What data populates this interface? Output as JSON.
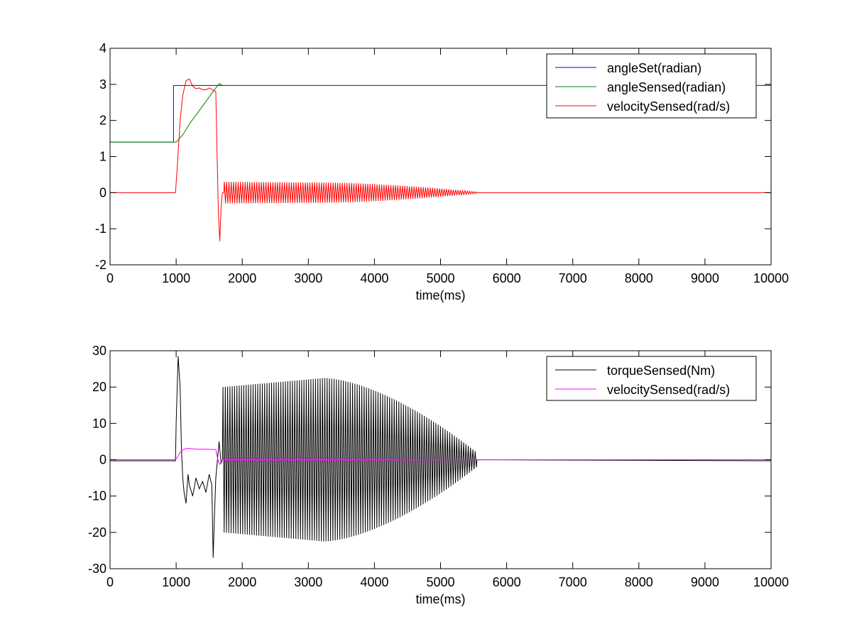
{
  "chart_data": [
    {
      "type": "line",
      "xlabel": "time(ms)",
      "ylabel": "",
      "xlim": [
        0,
        10000
      ],
      "ylim": [
        -2,
        4
      ],
      "xticks": [
        0,
        1000,
        2000,
        3000,
        4000,
        5000,
        6000,
        7000,
        8000,
        9000,
        10000
      ],
      "yticks": [
        -2,
        -1,
        0,
        1,
        2,
        3,
        4
      ],
      "grid": false,
      "legend_position": "top-right",
      "series": [
        {
          "name": "angleSet(radian)",
          "color": "#0000ff",
          "x": [
            0,
            960,
            960,
            10000
          ],
          "y": [
            1.4,
            1.4,
            2.97,
            2.97
          ]
        },
        {
          "name": "angleSensed(radian)",
          "color": "#008000",
          "x": [
            0,
            1000,
            1100,
            1200,
            1300,
            1400,
            1500,
            1600,
            1650,
            1700,
            10000
          ],
          "y": [
            1.4,
            1.4,
            1.6,
            1.9,
            2.15,
            2.4,
            2.65,
            2.9,
            3.02,
            2.97,
            2.97
          ]
        },
        {
          "name": "velocitySensed(rad/s)",
          "color": "#ff0000",
          "x": [
            0,
            990,
            1020,
            1060,
            1100,
            1150,
            1200,
            1250,
            1300,
            1350,
            1400,
            1450,
            1500,
            1550,
            1600,
            1620,
            1640,
            1660,
            1680,
            1700,
            10000
          ],
          "y": [
            0,
            0,
            0.8,
            2.0,
            2.7,
            3.1,
            3.15,
            2.95,
            2.88,
            2.9,
            2.85,
            2.85,
            2.9,
            2.85,
            2.8,
            1.0,
            -0.6,
            -1.35,
            -0.4,
            0,
            0
          ],
          "oscillation": {
            "start": 1720,
            "end": 5550,
            "period": 35,
            "amplitude_start": 0.3,
            "amplitude_mid": 0.28,
            "amplitude_end": 0.02
          }
        }
      ]
    },
    {
      "type": "line",
      "xlabel": "time(ms)",
      "ylabel": "",
      "xlim": [
        0,
        10000
      ],
      "ylim": [
        -30,
        30
      ],
      "xticks": [
        0,
        1000,
        2000,
        3000,
        4000,
        5000,
        6000,
        7000,
        8000,
        9000,
        10000
      ],
      "yticks": [
        -30,
        -20,
        -10,
        0,
        10,
        20,
        30
      ],
      "grid": false,
      "legend_position": "top-right",
      "series": [
        {
          "name": "torqueSensed(Nm)",
          "color": "#000000",
          "x": [
            0,
            990,
            1000,
            1030,
            1060,
            1080,
            1100,
            1120,
            1150,
            1180,
            1200,
            1250,
            1300,
            1350,
            1400,
            1450,
            1500,
            1540,
            1560,
            1580,
            1600,
            1620,
            1650,
            1680,
            10000
          ],
          "y": [
            -0.3,
            -0.3,
            10,
            28.5,
            20,
            3,
            -5,
            -9,
            -12,
            -4,
            -7,
            -10,
            -5,
            -8,
            -6,
            -9,
            -4,
            -7,
            -27,
            -15,
            -5,
            -1,
            5,
            -1,
            -0.3
          ],
          "oscillation": {
            "start": 1700,
            "end": 5550,
            "period": 35,
            "amplitude_start": 20,
            "amplitude_mid": 22.5,
            "amplitude_end": 2
          }
        },
        {
          "name": "velocitySensed(rad/s)",
          "color": "#ff00ff",
          "x": [
            0,
            990,
            1020,
            1060,
            1100,
            1150,
            1200,
            1300,
            1400,
            1500,
            1600,
            1620,
            1640,
            1660,
            1700,
            10000
          ],
          "y": [
            0,
            0,
            0.8,
            2.0,
            2.7,
            3.1,
            3.1,
            2.9,
            2.9,
            2.85,
            2.8,
            1.0,
            -0.6,
            -1.3,
            0,
            0
          ],
          "oscillation": {
            "start": 1720,
            "end": 5550,
            "period": 35,
            "amplitude_start": 0.3,
            "amplitude_mid": 0.28,
            "amplitude_end": 0.02
          }
        }
      ]
    }
  ]
}
